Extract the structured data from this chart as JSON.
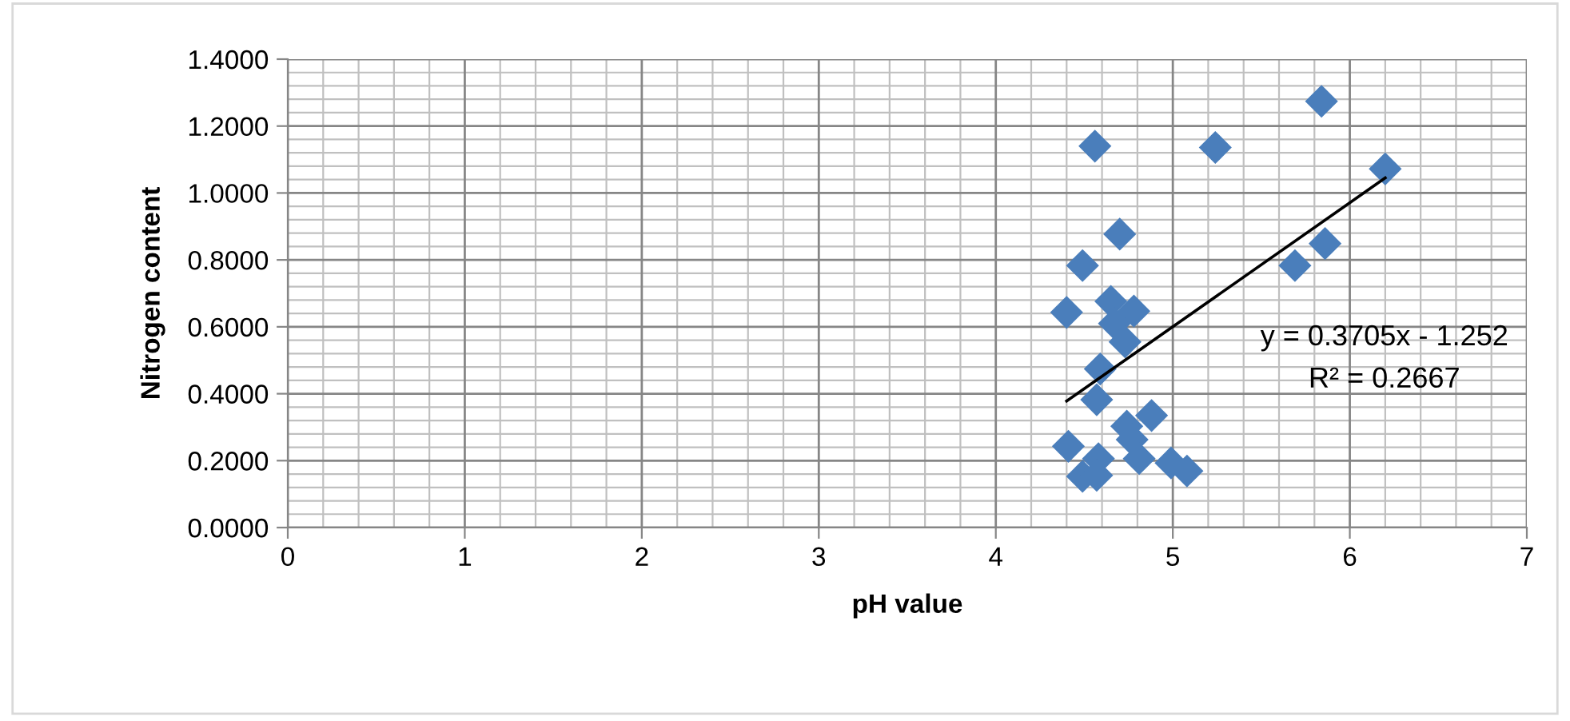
{
  "chart_data": {
    "type": "scatter",
    "xlabel": "pH value",
    "ylabel": "Nitrogen content",
    "xlim": [
      0,
      7
    ],
    "xticks": [
      0,
      1,
      2,
      3,
      4,
      5,
      6,
      7
    ],
    "ylim": [
      0,
      1.4
    ],
    "yticks": [
      {
        "value": 0,
        "label": "0.0000"
      },
      {
        "value": 0.2,
        "label": "0.2000"
      },
      {
        "value": 0.4,
        "label": "0.4000"
      },
      {
        "value": 0.6,
        "label": "0.6000"
      },
      {
        "value": 0.8,
        "label": "0.8000"
      },
      {
        "value": 1.0,
        "label": "1.0000"
      },
      {
        "value": 1.2,
        "label": "1.2000"
      },
      {
        "value": 1.4,
        "label": "1.4000"
      }
    ],
    "grid": true,
    "legend": false,
    "series": [
      {
        "color": "#4a7ebb",
        "marker": "diamond",
        "x": [
          5.84,
          4.56,
          5.24,
          6.2,
          4.7,
          5.86,
          4.49,
          5.69,
          4.4,
          4.65,
          4.78,
          4.67,
          4.73,
          4.59,
          4.57,
          4.88,
          4.74,
          4.77,
          4.41,
          4.58,
          4.81,
          4.99,
          5.08,
          4.49,
          4.57
        ],
        "values": [
          1.274,
          1.14,
          1.136,
          1.072,
          0.877,
          0.849,
          0.783,
          0.783,
          0.643,
          0.676,
          0.647,
          0.61,
          0.555,
          0.474,
          0.382,
          0.335,
          0.303,
          0.263,
          0.243,
          0.206,
          0.206,
          0.193,
          0.169,
          0.153,
          0.156
        ]
      },
      {
        "type": "line",
        "color": "#000000",
        "marker": "none",
        "line_style": "solid",
        "x": [
          4.4,
          6.2
        ],
        "values": [
          0.378,
          1.045
        ]
      }
    ],
    "annotations": [
      "y = 0.3705x - 1.252",
      "R² = 0.2667"
    ]
  }
}
